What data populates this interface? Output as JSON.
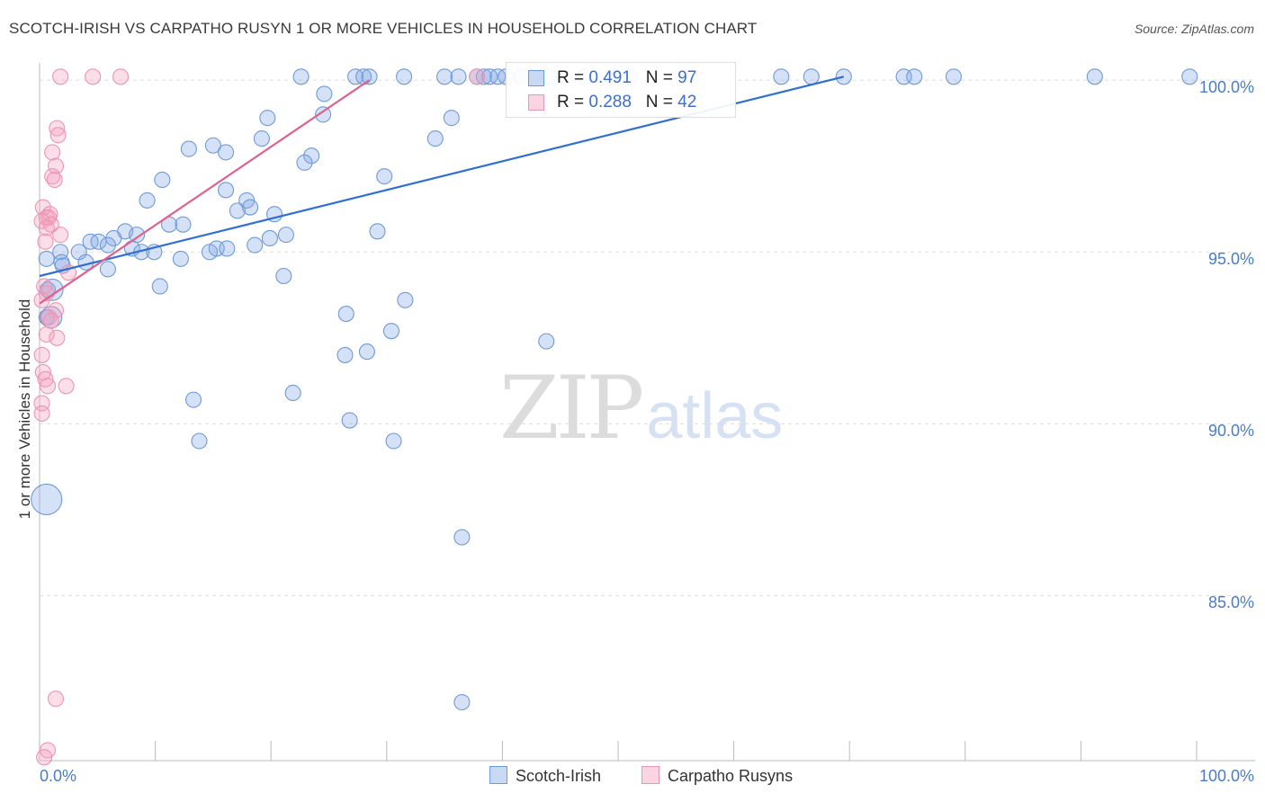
{
  "header": {
    "title": "SCOTCH-IRISH VS CARPATHO RUSYN 1 OR MORE VEHICLES IN HOUSEHOLD CORRELATION CHART",
    "source": "Source: ZipAtlas.com"
  },
  "watermark": {
    "zip": "ZIP",
    "atlas": "atlas"
  },
  "colors": {
    "blue_fill": "rgba(133,170,230,0.35)",
    "blue_stroke": "#6f9ad8",
    "blue_line": "#2f6fd0",
    "pink_fill": "rgba(244,160,188,0.35)",
    "pink_stroke": "#ee94b2",
    "pink_line": "#e0608f",
    "grid": "#dddddd",
    "tick_text": "#4a7cc7"
  },
  "legend": {
    "rows": [
      {
        "r_label": "R =",
        "r_value": "0.491",
        "n_label": "N =",
        "n_value": "97"
      },
      {
        "r_label": "R =",
        "r_value": "0.288",
        "n_label": "N =",
        "n_value": "42"
      }
    ],
    "bottom": [
      "Scotch-Irish",
      "Carpatho Rusyns"
    ]
  },
  "chart_data": {
    "type": "scatter",
    "title": "SCOTCH-IRISH VS CARPATHO RUSYN 1 OR MORE VEHICLES IN HOUSEHOLD CORRELATION CHART",
    "xlabel": "",
    "ylabel": "1 or more Vehicles in Household",
    "xlim": [
      0,
      100
    ],
    "ylim": [
      80.2,
      100.5
    ],
    "x_tick_labels": [
      "0.0%",
      "100.0%"
    ],
    "y_ticks": [
      100,
      95,
      90,
      85
    ],
    "y_tick_labels": [
      "100.0%",
      "95.0%",
      "90.0%",
      "85.0%"
    ],
    "legend_position": "top-center",
    "series": [
      {
        "name": "Scotch-Irish",
        "R": 0.491,
        "N": 97,
        "trend": {
          "x0": 0,
          "y0": 94.3,
          "x1": 69.5,
          "y1": 100.1
        },
        "points": [
          [
            22.6,
            100.1,
            1
          ],
          [
            27.3,
            100.1,
            1
          ],
          [
            28.0,
            100.1,
            1
          ],
          [
            28.5,
            100.1,
            1
          ],
          [
            31.5,
            100.1,
            1
          ],
          [
            35.0,
            100.1,
            1
          ],
          [
            36.2,
            100.1,
            1
          ],
          [
            37.8,
            100.1,
            1
          ],
          [
            38.4,
            100.1,
            1
          ],
          [
            38.9,
            100.1,
            1
          ],
          [
            39.6,
            100.1,
            1
          ],
          [
            40.3,
            100.1,
            1
          ],
          [
            41.7,
            100.1,
            1
          ],
          [
            44.0,
            100.1,
            1
          ],
          [
            47.1,
            100.1,
            1
          ],
          [
            49.5,
            100.1,
            1
          ],
          [
            51.0,
            100.1,
            1
          ],
          [
            64.1,
            100.1,
            1
          ],
          [
            66.7,
            100.1,
            1
          ],
          [
            69.5,
            100.1,
            1
          ],
          [
            74.7,
            100.1,
            1
          ],
          [
            75.6,
            100.1,
            1
          ],
          [
            79.0,
            100.1,
            1
          ],
          [
            91.2,
            100.1,
            1
          ],
          [
            99.4,
            100.1,
            1
          ],
          [
            24.6,
            99.6,
            1
          ],
          [
            19.7,
            98.9,
            1
          ],
          [
            24.5,
            99.0,
            1
          ],
          [
            35.6,
            98.9,
            1
          ],
          [
            19.2,
            98.3,
            1
          ],
          [
            34.2,
            98.3,
            1
          ],
          [
            12.9,
            98.0,
            1
          ],
          [
            15.0,
            98.1,
            1
          ],
          [
            16.1,
            97.9,
            1
          ],
          [
            23.5,
            97.8,
            1
          ],
          [
            22.9,
            97.6,
            1
          ],
          [
            10.6,
            97.1,
            1
          ],
          [
            29.8,
            97.2,
            1
          ],
          [
            16.1,
            96.8,
            1
          ],
          [
            9.3,
            96.5,
            1
          ],
          [
            17.9,
            96.5,
            1
          ],
          [
            17.1,
            96.2,
            1
          ],
          [
            18.2,
            96.3,
            1
          ],
          [
            20.3,
            96.1,
            1
          ],
          [
            11.2,
            95.8,
            1
          ],
          [
            12.4,
            95.8,
            1
          ],
          [
            7.4,
            95.6,
            1
          ],
          [
            6.4,
            95.4,
            1
          ],
          [
            8.4,
            95.5,
            1
          ],
          [
            21.3,
            95.5,
            1
          ],
          [
            29.2,
            95.6,
            1
          ],
          [
            4.4,
            95.3,
            1
          ],
          [
            5.1,
            95.3,
            1
          ],
          [
            5.9,
            95.2,
            1
          ],
          [
            8.0,
            95.1,
            1
          ],
          [
            15.3,
            95.1,
            1
          ],
          [
            16.2,
            95.1,
            1
          ],
          [
            18.6,
            95.2,
            1
          ],
          [
            19.9,
            95.4,
            1
          ],
          [
            1.8,
            95.0,
            1
          ],
          [
            3.4,
            95.0,
            1
          ],
          [
            8.8,
            95.0,
            1
          ],
          [
            9.9,
            95.0,
            1
          ],
          [
            12.2,
            94.8,
            1
          ],
          [
            14.7,
            95.0,
            1
          ],
          [
            0.6,
            94.8,
            1
          ],
          [
            1.9,
            94.7,
            1
          ],
          [
            4.0,
            94.7,
            1
          ],
          [
            2.0,
            94.6,
            1
          ],
          [
            5.9,
            94.5,
            1
          ],
          [
            21.1,
            94.3,
            1
          ],
          [
            10.4,
            94.0,
            1
          ],
          [
            0.7,
            93.9,
            1
          ],
          [
            31.6,
            93.6,
            1
          ],
          [
            26.5,
            93.2,
            1
          ],
          [
            0.6,
            93.1,
            1
          ],
          [
            30.4,
            92.7,
            1
          ],
          [
            43.8,
            92.4,
            1
          ],
          [
            28.3,
            92.1,
            1
          ],
          [
            26.4,
            92.0,
            1
          ],
          [
            21.9,
            90.9,
            1
          ],
          [
            13.3,
            90.7,
            1
          ],
          [
            26.8,
            90.1,
            1
          ],
          [
            13.8,
            89.5,
            1
          ],
          [
            30.6,
            89.5,
            1
          ],
          [
            36.5,
            86.7,
            1
          ],
          [
            36.5,
            81.9,
            1
          ],
          [
            0.6,
            87.8,
            2
          ],
          [
            1.1,
            93.9,
            1.4
          ],
          [
            1.0,
            93.1,
            1.4
          ]
        ]
      },
      {
        "name": "Carpatho Rusyns",
        "R": 0.288,
        "N": 42,
        "trend": {
          "x0": 0,
          "y0": 93.5,
          "x1": 28.5,
          "y1": 100.0
        },
        "points": [
          [
            1.8,
            100.1,
            1
          ],
          [
            4.6,
            100.1,
            1
          ],
          [
            7.0,
            100.1,
            1
          ],
          [
            37.8,
            100.1,
            1
          ],
          [
            1.5,
            98.6,
            1
          ],
          [
            1.6,
            98.4,
            1
          ],
          [
            1.1,
            97.9,
            1
          ],
          [
            1.4,
            97.5,
            1
          ],
          [
            1.1,
            97.2,
            1
          ],
          [
            1.3,
            97.1,
            1
          ],
          [
            0.3,
            96.3,
            1
          ],
          [
            0.9,
            96.1,
            1
          ],
          [
            0.6,
            96.0,
            1
          ],
          [
            0.8,
            96.0,
            1
          ],
          [
            0.2,
            95.9,
            1
          ],
          [
            1.0,
            95.8,
            1
          ],
          [
            0.6,
            95.7,
            1
          ],
          [
            1.8,
            95.5,
            1
          ],
          [
            0.5,
            95.3,
            1
          ],
          [
            2.5,
            94.4,
            1
          ],
          [
            0.4,
            94.0,
            1
          ],
          [
            0.6,
            93.8,
            1
          ],
          [
            0.2,
            93.6,
            1
          ],
          [
            1.4,
            93.3,
            1
          ],
          [
            0.8,
            93.1,
            1
          ],
          [
            1.0,
            93.0,
            1
          ],
          [
            0.6,
            92.6,
            1
          ],
          [
            1.5,
            92.5,
            1
          ],
          [
            0.2,
            92.0,
            1
          ],
          [
            0.3,
            91.5,
            1
          ],
          [
            0.5,
            91.3,
            1
          ],
          [
            0.7,
            91.1,
            1
          ],
          [
            2.3,
            91.1,
            1
          ],
          [
            0.2,
            90.6,
            1
          ],
          [
            0.2,
            90.3,
            1
          ],
          [
            1.4,
            82.0,
            1
          ],
          [
            0.7,
            80.5,
            1
          ],
          [
            0.4,
            80.3,
            1
          ]
        ]
      }
    ]
  }
}
